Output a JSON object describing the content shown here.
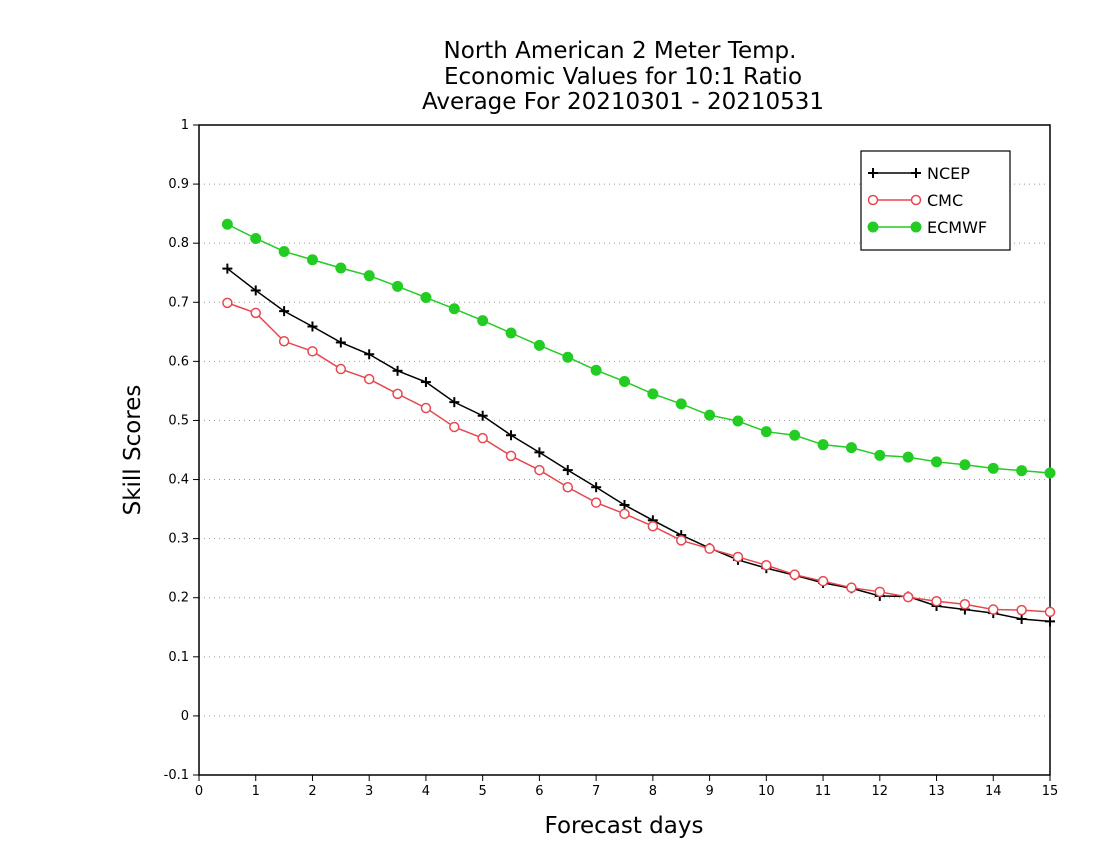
{
  "chart_data": {
    "type": "line",
    "title_lines": [
      "North American 2 Meter Temp.",
      "Economic Values for 10:1 Ratio",
      "Average For 20210301 - 20210531"
    ],
    "xlabel": "Forecast days",
    "ylabel": "Skill Scores",
    "xlim": [
      0,
      15
    ],
    "ylim": [
      -0.1,
      1
    ],
    "x_ticks": [
      "0",
      "1",
      "2",
      "3",
      "4",
      "5",
      "6",
      "7",
      "8",
      "9",
      "10",
      "11",
      "12",
      "13",
      "14",
      "15"
    ],
    "y_ticks": [
      "-0.1",
      "0",
      "0.1",
      "0.2",
      "0.3",
      "0.4",
      "0.5",
      "0.6",
      "0.7",
      "0.8",
      "0.9",
      "1"
    ],
    "grid": "horizontal dotted",
    "legend_position": "top-right",
    "x": [
      0.5,
      1,
      1.5,
      2,
      2.5,
      3,
      3.5,
      4,
      4.5,
      5,
      5.5,
      6,
      6.5,
      7,
      7.5,
      8,
      8.5,
      9,
      9.5,
      10,
      10.5,
      11,
      11.5,
      12,
      12.5,
      13,
      13.5,
      14,
      14.5,
      15
    ],
    "series": [
      {
        "name": "NCEP",
        "color": "#000000",
        "marker": "plus",
        "values": [
          0.757,
          0.72,
          0.685,
          0.659,
          0.632,
          0.612,
          0.584,
          0.565,
          0.531,
          0.508,
          0.475,
          0.446,
          0.416,
          0.387,
          0.357,
          0.331,
          0.306,
          0.284,
          0.264,
          0.25,
          0.238,
          0.225,
          0.216,
          0.203,
          0.202,
          0.186,
          0.18,
          0.174,
          0.164,
          0.16
        ]
      },
      {
        "name": "CMC",
        "color": "#e8474e",
        "marker": "open-circle",
        "values": [
          0.699,
          0.682,
          0.634,
          0.617,
          0.587,
          0.57,
          0.545,
          0.521,
          0.489,
          0.47,
          0.44,
          0.416,
          0.387,
          0.361,
          0.342,
          0.321,
          0.297,
          0.283,
          0.269,
          0.255,
          0.239,
          0.228,
          0.217,
          0.21,
          0.201,
          0.194,
          0.189,
          0.18,
          0.179,
          0.176
        ]
      },
      {
        "name": "ECMWF",
        "color": "#22cc22",
        "marker": "filled-circle",
        "values": [
          0.832,
          0.808,
          0.786,
          0.772,
          0.758,
          0.745,
          0.727,
          0.708,
          0.689,
          0.669,
          0.648,
          0.627,
          0.607,
          0.585,
          0.566,
          0.545,
          0.528,
          0.509,
          0.499,
          0.481,
          0.475,
          0.459,
          0.454,
          0.441,
          0.438,
          0.43,
          0.425,
          0.419,
          0.415,
          0.411
        ]
      }
    ]
  }
}
